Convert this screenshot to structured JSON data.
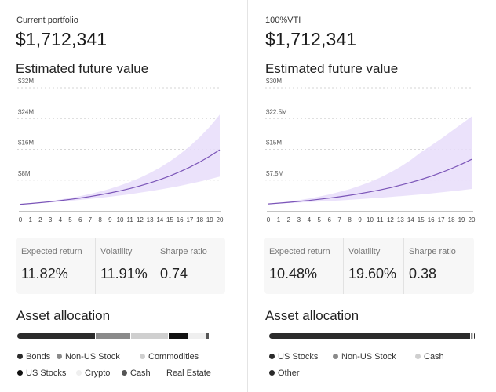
{
  "colors": {
    "line": "#7b55b8",
    "band": "#e8ddfa",
    "grid": "#d6d6d6",
    "axis": "#c4c4c4"
  },
  "panels": [
    {
      "caption": "Current portfolio",
      "value": "$1,712,341",
      "chart_title": "Estimated future value",
      "metrics": [
        {
          "label": "Expected return",
          "value": "11.82%"
        },
        {
          "label": "Volatility",
          "value": "11.91%"
        },
        {
          "label": "Sharpe ratio",
          "value": "0.74"
        }
      ],
      "allocation_title": "Asset allocation",
      "allocation": [
        {
          "name": "Bonds",
          "color": "#2b2b2b",
          "share": 0.4
        },
        {
          "name": "Non-US Stock",
          "color": "#8a8a8a",
          "share": 0.18
        },
        {
          "name": "Commodities",
          "color": "#cfcfcf",
          "share": 0.19
        },
        {
          "name": "US Stocks",
          "color": "#111111",
          "share": 0.1
        },
        {
          "name": "Crypto",
          "color": "#efefef",
          "share": 0.095
        },
        {
          "name": "Cash",
          "color": "#555555",
          "share": 0.015
        },
        {
          "name": "Real Estate",
          "color": "#ffffff",
          "share": 0.005
        }
      ]
    },
    {
      "caption": "100%VTI",
      "value": "$1,712,341",
      "chart_title": "Estimated future value",
      "metrics": [
        {
          "label": "Expected return",
          "value": "10.48%"
        },
        {
          "label": "Volatility",
          "value": "19.60%"
        },
        {
          "label": "Sharpe ratio",
          "value": "0.38"
        }
      ],
      "allocation_title": "Asset allocation",
      "allocation": [
        {
          "name": "US Stocks",
          "color": "#2b2b2b",
          "share": 0.98
        },
        {
          "name": "Non-US Stock",
          "color": "#8a8a8a",
          "share": 0.01
        },
        {
          "name": "Cash",
          "color": "#cfcfcf",
          "share": 0.005
        },
        {
          "name": "Other",
          "color": "#2b2b2b",
          "share": 0.005
        }
      ]
    }
  ],
  "chart_data": [
    {
      "type": "area",
      "title": "Estimated future value",
      "x": [
        0,
        1,
        2,
        3,
        4,
        5,
        6,
        7,
        8,
        9,
        10,
        11,
        12,
        13,
        14,
        15,
        16,
        17,
        18,
        19,
        20
      ],
      "yticks": [
        "$8M",
        "$16M",
        "$24M",
        "$32M"
      ],
      "ytick_values": [
        8,
        16,
        24,
        32
      ],
      "ylim": [
        0,
        32
      ],
      "grid": true,
      "series": [
        {
          "values": [
            1.71,
            1.91,
            2.14,
            2.39,
            2.67,
            2.99,
            3.34,
            3.73,
            4.17,
            4.66,
            5.21,
            5.83,
            6.51,
            7.28,
            8.14,
            9.1,
            10.17,
            11.37,
            12.71,
            14.2,
            15.88
          ]
        }
      ],
      "band_upper": [
        1.71,
        1.96,
        2.25,
        2.57,
        2.95,
        3.37,
        3.86,
        4.41,
        5.04,
        5.77,
        6.6,
        7.54,
        8.62,
        9.86,
        11.27,
        12.88,
        14.72,
        16.82,
        19.2,
        21.9,
        25.0
      ],
      "band_lower": [
        1.71,
        1.86,
        2.03,
        2.21,
        2.41,
        2.63,
        2.86,
        3.12,
        3.39,
        3.69,
        4.0,
        4.35,
        4.72,
        5.12,
        5.55,
        6.01,
        6.51,
        7.05,
        7.63,
        8.25,
        8.9
      ]
    },
    {
      "type": "area",
      "title": "Estimated future value",
      "x": [
        0,
        1,
        2,
        3,
        4,
        5,
        6,
        7,
        8,
        9,
        10,
        11,
        12,
        13,
        14,
        15,
        16,
        17,
        18,
        19,
        20
      ],
      "yticks": [
        "$7.5M",
        "$15M",
        "$22.5M",
        "$30M"
      ],
      "ytick_values": [
        7.5,
        15,
        22.5,
        30
      ],
      "ylim": [
        0,
        30
      ],
      "grid": true,
      "series": [
        {
          "values": [
            1.71,
            1.89,
            2.09,
            2.31,
            2.55,
            2.82,
            3.11,
            3.44,
            3.8,
            4.2,
            4.64,
            5.12,
            5.66,
            6.26,
            6.91,
            7.64,
            8.44,
            9.33,
            10.31,
            11.39,
            12.58
          ]
        }
      ],
      "band_upper": [
        1.71,
        1.97,
        2.27,
        2.62,
        3.02,
        3.48,
        4.01,
        4.62,
        5.32,
        6.13,
        7.06,
        8.13,
        9.36,
        10.78,
        12.41,
        14.28,
        15.9,
        17.6,
        19.4,
        21.2,
        23.0
      ],
      "band_lower": [
        1.71,
        1.81,
        1.92,
        2.03,
        2.15,
        2.28,
        2.41,
        2.55,
        2.7,
        2.86,
        3.03,
        3.2,
        3.39,
        3.59,
        3.8,
        4.02,
        4.26,
        4.51,
        4.77,
        5.05,
        5.35
      ]
    }
  ],
  "legend_left": [
    {
      "name": "Bonds",
      "color": "#2b2b2b"
    },
    {
      "name": "Non-US Stock",
      "color": "#8a8a8a"
    },
    {
      "name": "Commodities",
      "color": "#cfcfcf"
    },
    {
      "name": "US Stocks",
      "color": "#111111"
    },
    {
      "name": "Crypto",
      "color": "#efefef"
    },
    {
      "name": "Cash",
      "color": "#555555"
    },
    {
      "name": "Real Estate",
      "color": "#ffffff"
    }
  ],
  "legend_right": [
    {
      "name": "US Stocks",
      "color": "#2b2b2b"
    },
    {
      "name": "Non-US Stock",
      "color": "#8a8a8a"
    },
    {
      "name": "Cash",
      "color": "#cfcfcf"
    },
    {
      "name": "Other",
      "color": "#2b2b2b"
    }
  ]
}
